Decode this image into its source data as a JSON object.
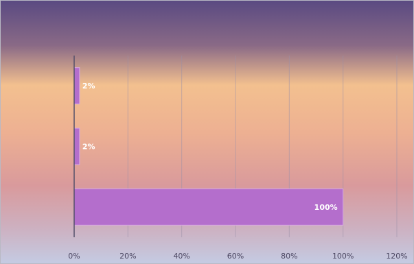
{
  "chart_data": {
    "type": "bar",
    "orientation": "horizontal",
    "title": "",
    "categories": [
      "",
      "",
      ""
    ],
    "values": [
      2,
      2,
      100
    ],
    "data_labels": [
      "2%",
      "2%",
      "100%"
    ],
    "x_ticks": [
      "0%",
      "20%",
      "40%",
      "60%",
      "80%",
      "100%",
      "120%"
    ],
    "xlim": [
      0,
      120
    ],
    "xlabel": "",
    "ylabel": "",
    "grid": "vertical",
    "legend": "none"
  },
  "colors": {
    "bar_fill": "#b46ecc",
    "bar_edge": "#d9a8e6",
    "gridline": "#9a8fa8",
    "axis": "#55506a",
    "bg_top": "#5e4a86",
    "bg_peach": "#f3c08f",
    "bg_rose": "#d99a9c",
    "bg_bottom": "#c4cce4"
  }
}
